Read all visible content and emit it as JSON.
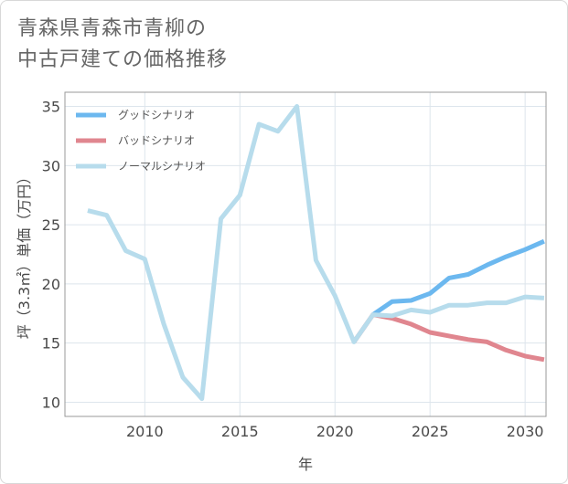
{
  "title_lines": [
    "青森県青森市青柳の",
    "中古戸建ての価格推移"
  ],
  "chart_data": {
    "type": "line",
    "title": "青森県青森市青柳の中古戸建ての価格推移",
    "xlabel": "年",
    "ylabel": "坪（3.3㎡）単価（万円）",
    "xlim": [
      2005.8,
      2031.1
    ],
    "ylim": [
      8.8,
      36.2
    ],
    "xticks": [
      2010,
      2015,
      2020,
      2025,
      2030
    ],
    "yticks": [
      10,
      15,
      20,
      25,
      30,
      35
    ],
    "grid": true,
    "legend_position": "top-left",
    "series": [
      {
        "name": "グッドシナリオ",
        "color": "#6cb8ef",
        "x": [
          2022,
          2023,
          2024,
          2025,
          2026,
          2027,
          2028,
          2029,
          2030,
          2031
        ],
        "y": [
          17.4,
          18.5,
          18.6,
          19.2,
          20.5,
          20.8,
          21.6,
          22.3,
          22.9,
          23.6
        ]
      },
      {
        "name": "バッドシナリオ",
        "color": "#e0868f",
        "x": [
          2021,
          2022,
          2023,
          2024,
          2025,
          2026,
          2027,
          2028,
          2029,
          2030,
          2031
        ],
        "y": [
          15.1,
          17.4,
          17.1,
          16.6,
          15.9,
          15.6,
          15.3,
          15.1,
          14.4,
          13.9,
          13.6
        ]
      },
      {
        "name": "ノーマルシナリオ",
        "color": "#b7dcec",
        "x": [
          2007,
          2008,
          2009,
          2010,
          2011,
          2012,
          2013,
          2014,
          2015,
          2016,
          2017,
          2018,
          2019,
          2020,
          2021,
          2022,
          2023,
          2024,
          2025,
          2026,
          2027,
          2028,
          2029,
          2030,
          2031
        ],
        "y": [
          26.2,
          25.8,
          22.8,
          22.1,
          16.6,
          12.1,
          10.3,
          25.5,
          27.5,
          33.5,
          32.9,
          35.0,
          22.0,
          19.0,
          15.1,
          17.4,
          17.3,
          17.8,
          17.6,
          18.2,
          18.2,
          18.4,
          18.4,
          18.9,
          18.8
        ]
      }
    ]
  }
}
